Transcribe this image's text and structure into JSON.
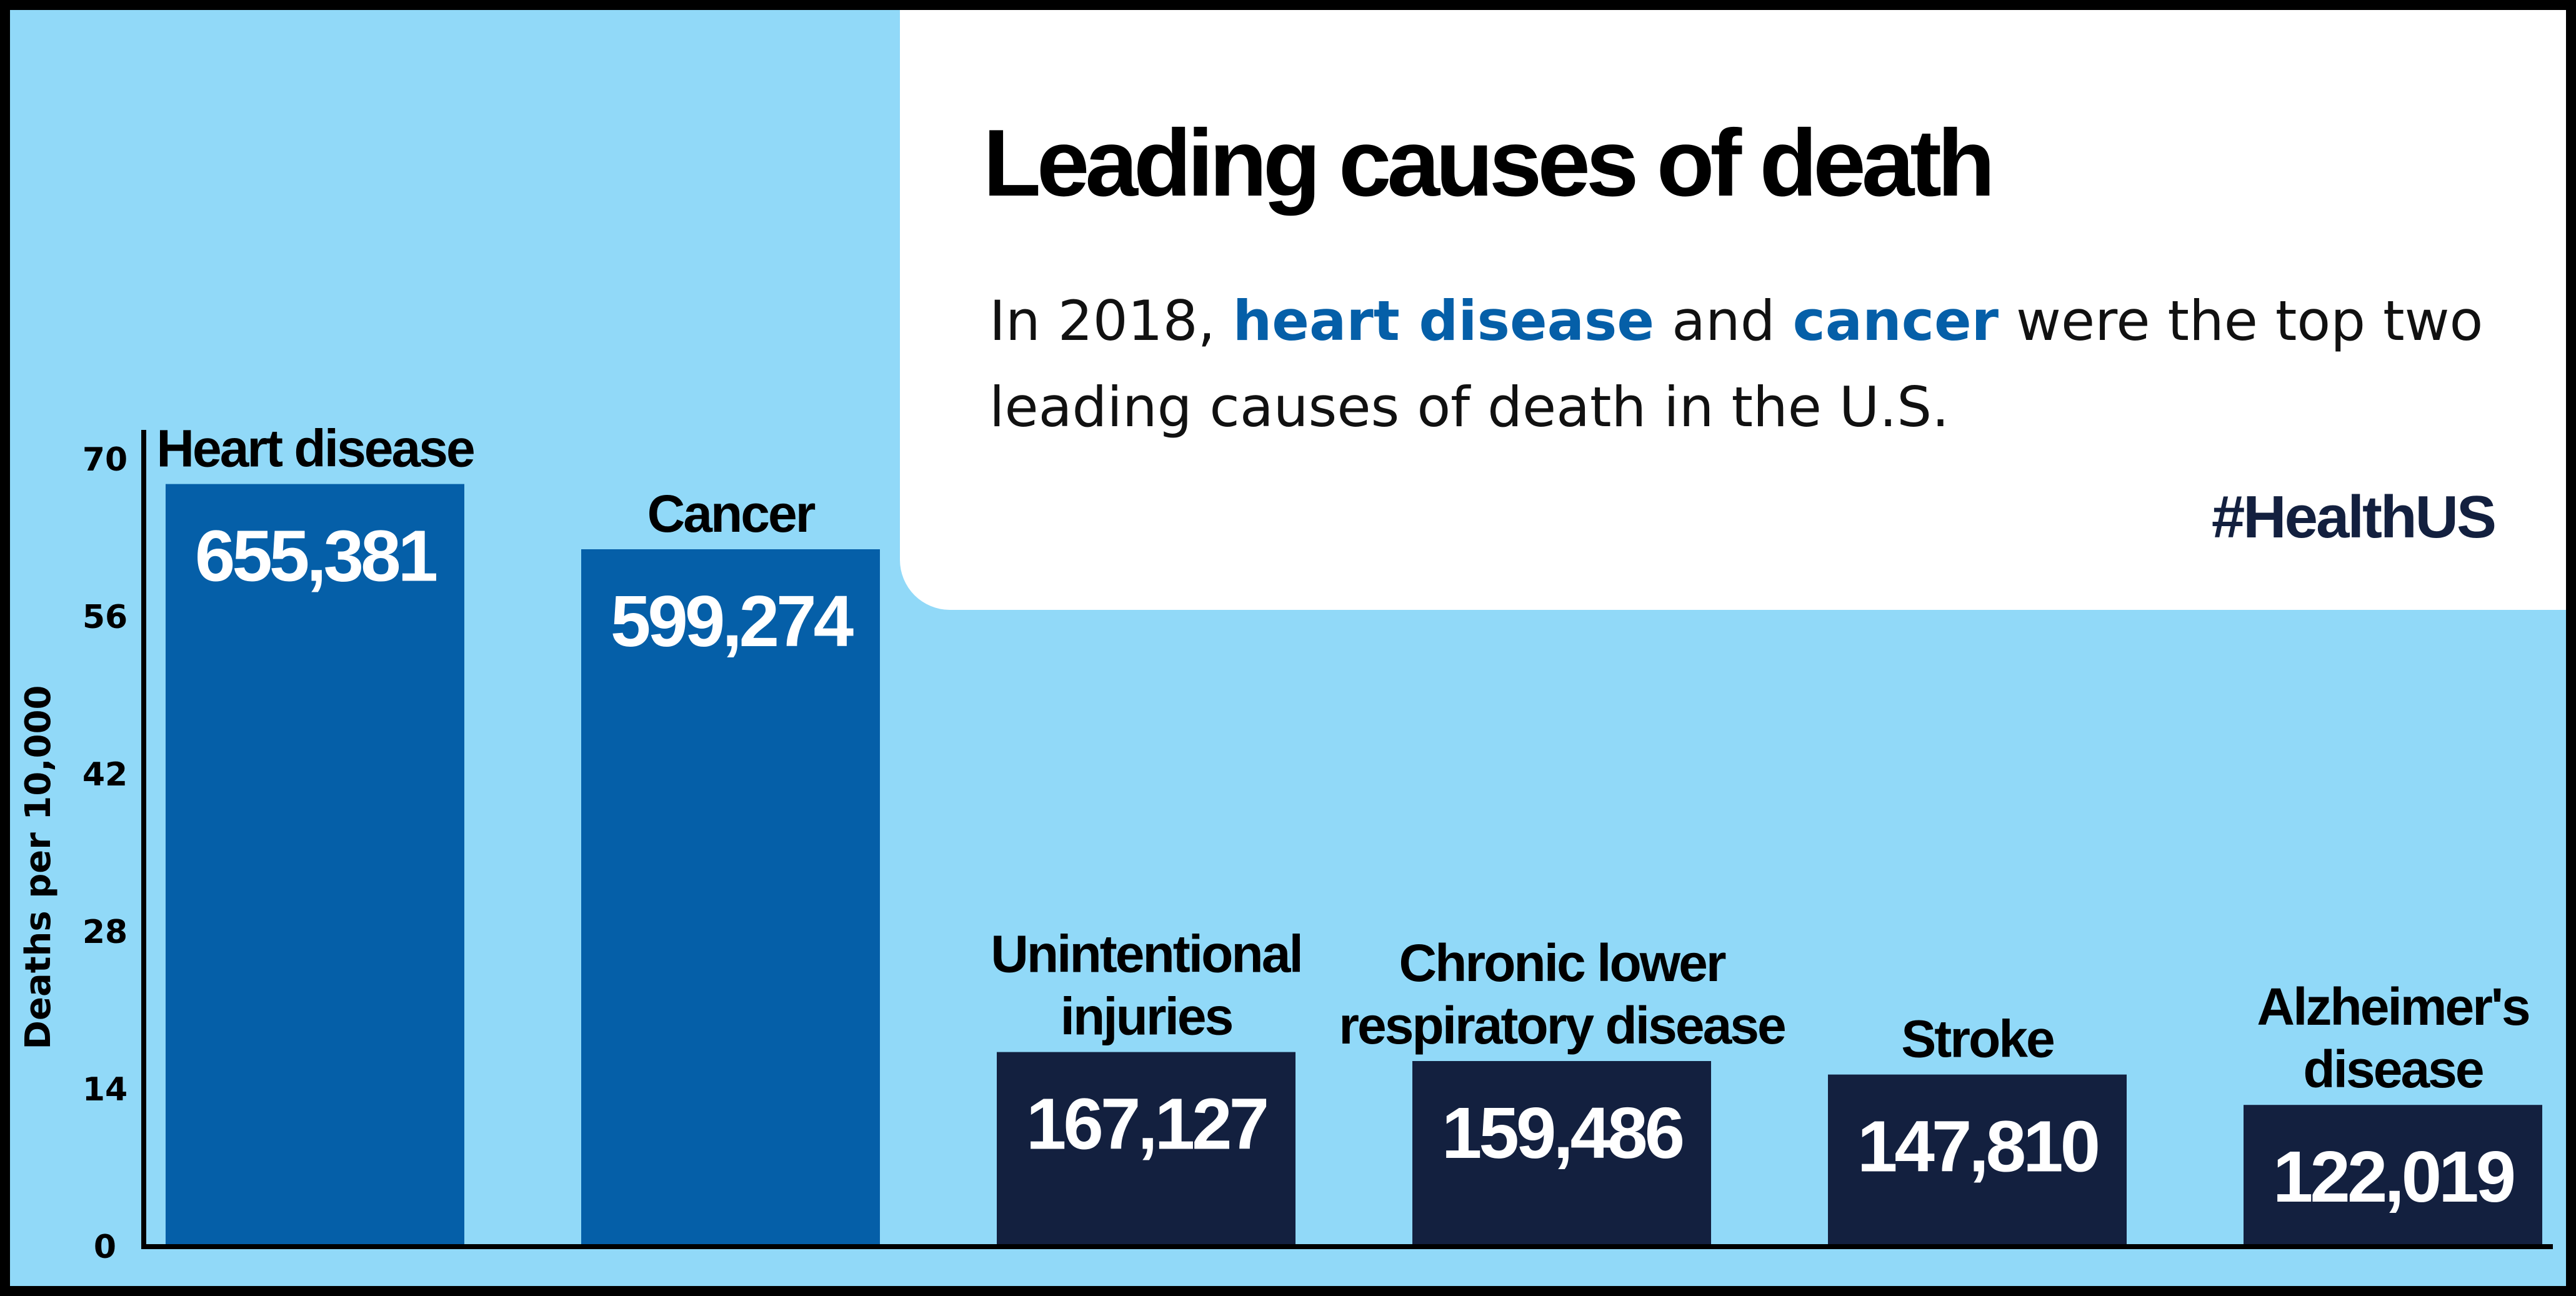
{
  "header": {
    "title": "Leading causes of death",
    "subtitle_parts": {
      "p1": "In 2018, ",
      "h1": "heart disease",
      "p2": " and ",
      "h2": "cancer",
      "p3": " were the top two leading causes of death in the U.S."
    },
    "hashtag": "#HealthUS"
  },
  "colors": {
    "background": "#91d9f8",
    "card": "#ffffff",
    "highlight": "#055fa8",
    "bar_top": "#055fa8",
    "bar_other": "#13203f"
  },
  "chart_data": {
    "type": "bar",
    "ylabel": "Deaths per 10,000",
    "ylim": [
      0,
      70
    ],
    "yticks": [
      "0",
      "14",
      "28",
      "42",
      "56",
      "70"
    ],
    "grid": false,
    "categories": [
      [
        "Heart disease"
      ],
      [
        "Cancer"
      ],
      [
        "Unintentional",
        "injuries"
      ],
      [
        "Chronic lower",
        "respiratory disease"
      ],
      [
        "Stroke"
      ],
      [
        "Alzheimer's",
        "disease"
      ]
    ],
    "values": [
      67.8,
      62.0,
      17.3,
      16.5,
      15.3,
      12.6
    ],
    "data_labels": [
      "655,381",
      "599,274",
      "167,127",
      "159,486",
      "147,810",
      "122,019"
    ],
    "bar_colors": [
      "#055fa8",
      "#055fa8",
      "#13203f",
      "#13203f",
      "#13203f",
      "#13203f"
    ]
  }
}
